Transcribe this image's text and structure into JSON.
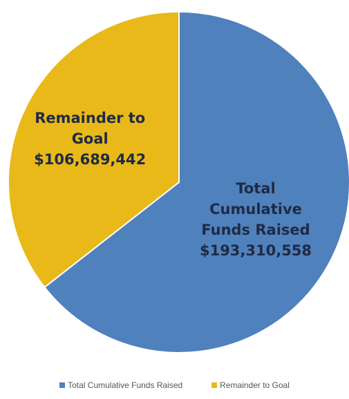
{
  "chart_data": {
    "type": "pie",
    "title": "",
    "slices": [
      {
        "name": "Total Cumulative Funds Raised",
        "value": 193310558,
        "color": "#4f81bd",
        "label_lines": [
          "Total",
          "Cumulative",
          "Funds Raised",
          "$193,310,558"
        ]
      },
      {
        "name": "Remainder to Goal",
        "value": 106689442,
        "color": "#e8b918",
        "label_lines": [
          "Remainder to",
          "Goal",
          "$106,689,442"
        ]
      }
    ],
    "legend": {
      "position": "bottom",
      "entries": [
        "Total Cumulative Funds Raised",
        "Remainder to Goal"
      ]
    }
  }
}
